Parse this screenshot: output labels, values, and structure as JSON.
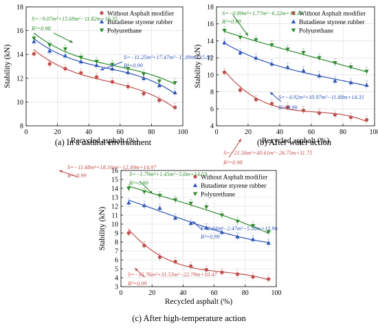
{
  "colors": {
    "without": "#c0504d",
    "bsr": "#2e55b8",
    "pu": "#2e8b2e",
    "grid": "#d9d9d9",
    "axis": "#000000"
  },
  "legend_labels": [
    "Without Asphalt modifier",
    "Butadiene styrene rubber",
    "Polyurethane"
  ],
  "chart_data": [
    {
      "type": "scatter",
      "caption": "(a) In a natural environment",
      "xlabel": "Recycled asphalt (%)",
      "ylabel": "Stability (kN)",
      "xlim": [
        0,
        100
      ],
      "ylim": [
        8,
        18
      ],
      "xticks": [
        0,
        20,
        40,
        60,
        80,
        100
      ],
      "yticks": [
        8,
        10,
        12,
        14,
        16,
        18
      ],
      "grid": true,
      "legend_position": "top-right",
      "x": [
        5,
        15,
        25,
        35,
        45,
        55,
        65,
        75,
        85,
        95
      ],
      "series": [
        {
          "name": "Without Asphalt modifier",
          "color": "without",
          "marker": "circle",
          "values": [
            14.05,
            13.2,
            12.8,
            12.45,
            12.1,
            11.7,
            11.3,
            10.7,
            10.15,
            9.55
          ],
          "fit": {
            "a": -11.68,
            "b": 18.16,
            "c": -12.49,
            "d": 14.97
          },
          "equation": "S=−11.68m³+18.16m²−12.49m+14.97",
          "r2": "R²=0.99"
        },
        {
          "name": "Butadiene styrene rubber",
          "color": "bsr",
          "marker": "triangle-up",
          "values": [
            15.1,
            14.3,
            13.9,
            13.4,
            13.1,
            12.8,
            12.5,
            12.0,
            11.4,
            10.8
          ],
          "fit": {
            "a": -11.25,
            "b": 17.47,
            "c": -11.89,
            "d": 15.88
          },
          "equation": "S=−11.25m³+17.47m²−11.89m+15.88",
          "r2": "R²=0.99"
        },
        {
          "name": "Polyurethane",
          "color": "pu",
          "marker": "triangle-down",
          "values": [
            15.35,
            14.8,
            14.45,
            13.75,
            13.4,
            13.15,
            12.8,
            12.35,
            11.75,
            11.6
          ],
          "fit": {
            "a": -9.07,
            "b": 15.69,
            "c": -11.82,
            "d": 16.35
          },
          "equation": "S=−9.07m³+15.69m²−11.82m+16.35",
          "r2": "R²=0.98"
        }
      ]
    },
    {
      "type": "scatter",
      "caption": "(b) After water action",
      "xlabel": "Recycled asphalt (%)",
      "ylabel": "Stability (kN)",
      "xlim": [
        0,
        100
      ],
      "ylim": [
        4,
        18
      ],
      "xticks": [
        0,
        20,
        40,
        60,
        80,
        100
      ],
      "yticks": [
        4,
        6,
        8,
        10,
        12,
        14,
        16,
        18
      ],
      "grid": true,
      "legend_position": "top-right",
      "x": [
        5,
        15,
        25,
        35,
        45,
        55,
        65,
        75,
        85,
        95
      ],
      "series": [
        {
          "name": "Without Asphalt modifier",
          "color": "without",
          "marker": "circle",
          "values": [
            10.3,
            8.2,
            7.1,
            6.6,
            6.2,
            5.8,
            5.5,
            5.3,
            5.0,
            4.7
          ],
          "fit": {
            "a": -21.56,
            "b": 40.61,
            "c": -26.75,
            "d": 11.75
          },
          "equation": "S=−21.56m³+40.61m²−26.75m+11.75",
          "r2": "R²=0.98"
        },
        {
          "name": "Butadiene styrene rubber",
          "color": "bsr",
          "marker": "triangle-up",
          "values": [
            13.8,
            12.6,
            12.0,
            11.3,
            10.9,
            10.5,
            9.9,
            9.3,
            9.1,
            8.8
          ],
          "fit": {
            "a": -4.92,
            "b": 10.97,
            "c": -11.88,
            "d": 14.31
          },
          "equation": "S=−4.92m³+10.97m²−11.88m+14.31",
          "r2": "R²=0.99"
        },
        {
          "name": "Polyurethane",
          "color": "pu",
          "marker": "triangle-down",
          "values": [
            15.2,
            14.4,
            14.1,
            13.5,
            13.0,
            12.6,
            12.0,
            11.4,
            10.9,
            10.4
          ],
          "fit": {
            "a": -0.89,
            "b": 1.77,
            "c": -6.22,
            "d": 15.43
          },
          "equation": "S=−0.89m³+1.77m²−6.22m+15.43",
          "r2": "R²=0.99"
        }
      ]
    },
    {
      "type": "scatter",
      "caption": "(c) After high-temperature action",
      "xlabel": "Recycled asphalt (%)",
      "ylabel": "Stability (kN)",
      "xlim": [
        0,
        100
      ],
      "ylim": [
        3,
        16
      ],
      "xticks": [
        0,
        20,
        40,
        60,
        80,
        100
      ],
      "yticks": [
        3,
        4,
        5,
        6,
        7,
        8,
        9,
        10,
        11,
        12,
        13,
        14,
        15,
        16
      ],
      "grid": true,
      "legend_position": "top-right",
      "x": [
        5,
        15,
        25,
        35,
        45,
        55,
        65,
        75,
        85,
        95
      ],
      "series": [
        {
          "name": "Without Asphalt modifier",
          "color": "without",
          "marker": "circle",
          "values": [
            9.0,
            7.6,
            6.3,
            5.8,
            5.3,
            4.9,
            4.6,
            4.4,
            4.1,
            3.85
          ],
          "fit": {
            "a": -15.76,
            "b": 31.53,
            "c": -22.79,
            "d": 10.47
          },
          "equation": "S=−15.76m³+31.53m²−22.79m+10.47",
          "r2": "R²=0.99"
        },
        {
          "name": "Butadiene styrene rubber",
          "color": "bsr",
          "marker": "triangle-up",
          "values": [
            12.4,
            12.1,
            11.8,
            10.7,
            10.1,
            9.6,
            9.1,
            8.6,
            8.3,
            7.9
          ],
          "fit": {
            "a": 2.94,
            "b": -2.47,
            "c": -5.58,
            "d": 12.96
          },
          "equation": "S=2.94m³−2.47m²−5.58m+12.96",
          "r2": "R²=0.99"
        },
        {
          "name": "Polyurethane",
          "color": "pu",
          "marker": "triangle-down",
          "values": [
            14.0,
            13.6,
            13.2,
            12.7,
            12.3,
            11.9,
            11.0,
            10.3,
            9.8,
            9.1
          ],
          "fit": {
            "a": -1.79,
            "b": 1.45,
            "c": -5.6,
            "d": 14.53
          },
          "equation": "S=−1.79m³+1.45m²−5.6m+14.53",
          "r2": "R²=0.99"
        }
      ]
    }
  ]
}
